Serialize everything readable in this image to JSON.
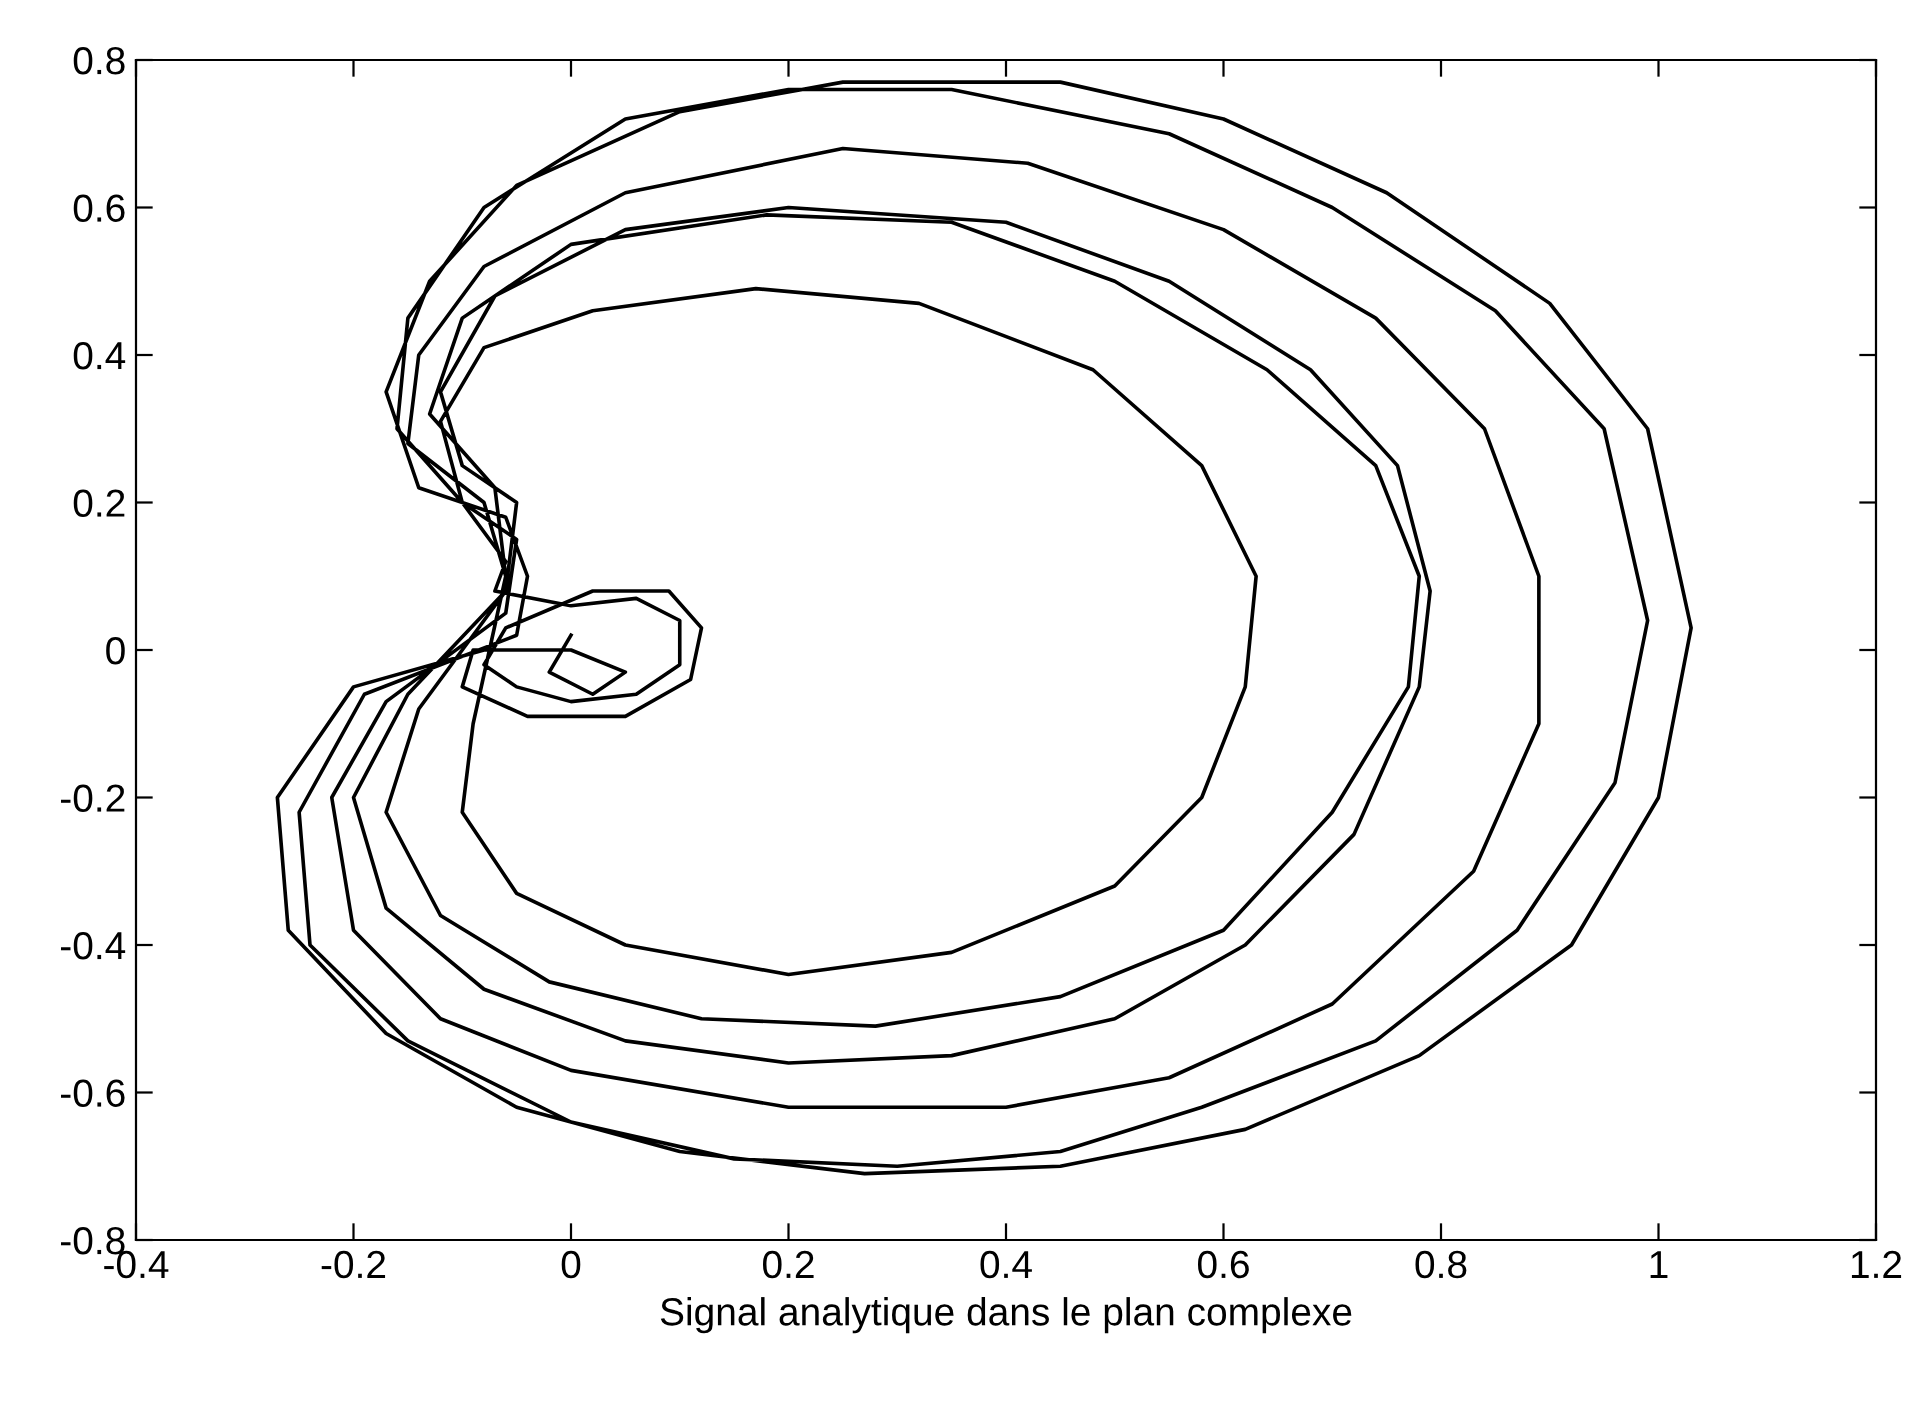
{
  "chart_data": {
    "type": "line",
    "xlabel": "Signal analytique dans le plan complexe",
    "xlim": [
      -0.4,
      1.2
    ],
    "ylim": [
      -0.8,
      0.8
    ],
    "xticks": [
      -0.4,
      -0.2,
      0,
      0.2,
      0.4,
      0.6,
      0.8,
      1,
      1.2
    ],
    "yticks": [
      -0.8,
      -0.6,
      -0.4,
      -0.2,
      0,
      0.2,
      0.4,
      0.6,
      0.8
    ],
    "grid": false,
    "legend": false,
    "marker": "none",
    "line_style": "solid",
    "series": [
      {
        "color": "#000000",
        "x": [
          -0.08,
          -0.2,
          -0.27,
          -0.26,
          -0.17,
          -0.05,
          0.1,
          0.27,
          0.45,
          0.62,
          0.78,
          0.92,
          1.0,
          1.03,
          0.99,
          0.9,
          0.75,
          0.6,
          0.45,
          0.25,
          0.1,
          -0.05,
          -0.13,
          -0.17,
          -0.14,
          -0.06,
          -0.04,
          -0.05,
          -0.05,
          -0.19,
          -0.25,
          -0.24,
          -0.15,
          0.0,
          0.15,
          0.3,
          0.45,
          0.58,
          0.74,
          0.87,
          0.96,
          0.99,
          0.95,
          0.85,
          0.7,
          0.55,
          0.35,
          0.2,
          0.05,
          -0.08,
          -0.15,
          -0.16,
          -0.1,
          -0.05,
          -0.06,
          -0.06,
          -0.17,
          -0.22,
          -0.2,
          -0.12,
          0.0,
          0.2,
          0.4,
          0.55,
          0.7,
          0.83,
          0.89,
          0.89,
          0.84,
          0.74,
          0.6,
          0.42,
          0.25,
          0.05,
          -0.08,
          -0.14,
          -0.15,
          -0.08,
          -0.06,
          -0.06,
          -0.15,
          -0.2,
          -0.17,
          -0.08,
          0.05,
          0.2,
          0.35,
          0.5,
          0.62,
          0.72,
          0.78,
          0.79,
          0.76,
          0.68,
          0.55,
          0.4,
          0.2,
          0.05,
          -0.07,
          -0.12,
          -0.1,
          -0.05,
          -0.06,
          -0.06,
          -0.14,
          -0.17,
          -0.12,
          -0.02,
          0.12,
          0.28,
          0.45,
          0.6,
          0.7,
          0.77,
          0.78,
          0.74,
          0.64,
          0.5,
          0.35,
          0.18,
          0.0,
          -0.1,
          -0.13,
          -0.07,
          -0.06,
          -0.06,
          -0.09,
          -0.1,
          -0.05,
          0.05,
          0.2,
          0.35,
          0.5,
          0.58,
          0.62,
          0.63,
          0.58,
          0.48,
          0.32,
          0.17,
          0.02,
          -0.08,
          -0.12,
          -0.1,
          -0.06,
          -0.07,
          0.0,
          0.06,
          0.1,
          0.1,
          0.06,
          0.0,
          -0.05,
          -0.08,
          -0.06,
          0.02,
          0.09,
          0.12,
          0.11,
          0.05,
          -0.04,
          -0.1,
          -0.09,
          0.0,
          0.05,
          0.02,
          -0.02,
          0.0
        ],
        "values": [
          0.0,
          -0.05,
          -0.2,
          -0.38,
          -0.52,
          -0.62,
          -0.68,
          -0.71,
          -0.7,
          -0.65,
          -0.55,
          -0.4,
          -0.2,
          0.03,
          0.3,
          0.47,
          0.62,
          0.72,
          0.77,
          0.77,
          0.73,
          0.63,
          0.5,
          0.35,
          0.22,
          0.18,
          0.1,
          0.02,
          0.02,
          -0.06,
          -0.22,
          -0.4,
          -0.53,
          -0.64,
          -0.69,
          -0.7,
          -0.68,
          -0.62,
          -0.53,
          -0.38,
          -0.18,
          0.04,
          0.3,
          0.46,
          0.6,
          0.7,
          0.76,
          0.76,
          0.72,
          0.6,
          0.45,
          0.3,
          0.2,
          0.15,
          0.05,
          0.05,
          -0.07,
          -0.2,
          -0.38,
          -0.5,
          -0.57,
          -0.62,
          -0.62,
          -0.58,
          -0.48,
          -0.3,
          -0.1,
          0.1,
          0.3,
          0.45,
          0.57,
          0.66,
          0.68,
          0.62,
          0.52,
          0.4,
          0.28,
          0.2,
          0.1,
          0.08,
          -0.06,
          -0.2,
          -0.35,
          -0.46,
          -0.53,
          -0.56,
          -0.55,
          -0.5,
          -0.4,
          -0.25,
          -0.05,
          0.08,
          0.25,
          0.38,
          0.5,
          0.58,
          0.6,
          0.57,
          0.48,
          0.35,
          0.25,
          0.2,
          0.08,
          0.08,
          -0.08,
          -0.22,
          -0.36,
          -0.45,
          -0.5,
          -0.51,
          -0.47,
          -0.38,
          -0.22,
          -0.05,
          0.1,
          0.25,
          0.38,
          0.5,
          0.58,
          0.59,
          0.55,
          0.45,
          0.32,
          0.22,
          0.1,
          0.1,
          -0.1,
          -0.22,
          -0.33,
          -0.4,
          -0.44,
          -0.41,
          -0.32,
          -0.2,
          -0.05,
          0.1,
          0.25,
          0.38,
          0.47,
          0.49,
          0.46,
          0.41,
          0.31,
          0.2,
          0.12,
          0.08,
          0.06,
          0.07,
          0.04,
          -0.02,
          -0.06,
          -0.07,
          -0.05,
          -0.02,
          0.03,
          0.08,
          0.08,
          0.03,
          -0.04,
          -0.09,
          -0.09,
          -0.05,
          0.0,
          0.0,
          -0.03,
          -0.06,
          -0.03,
          0.02
        ]
      }
    ]
  }
}
